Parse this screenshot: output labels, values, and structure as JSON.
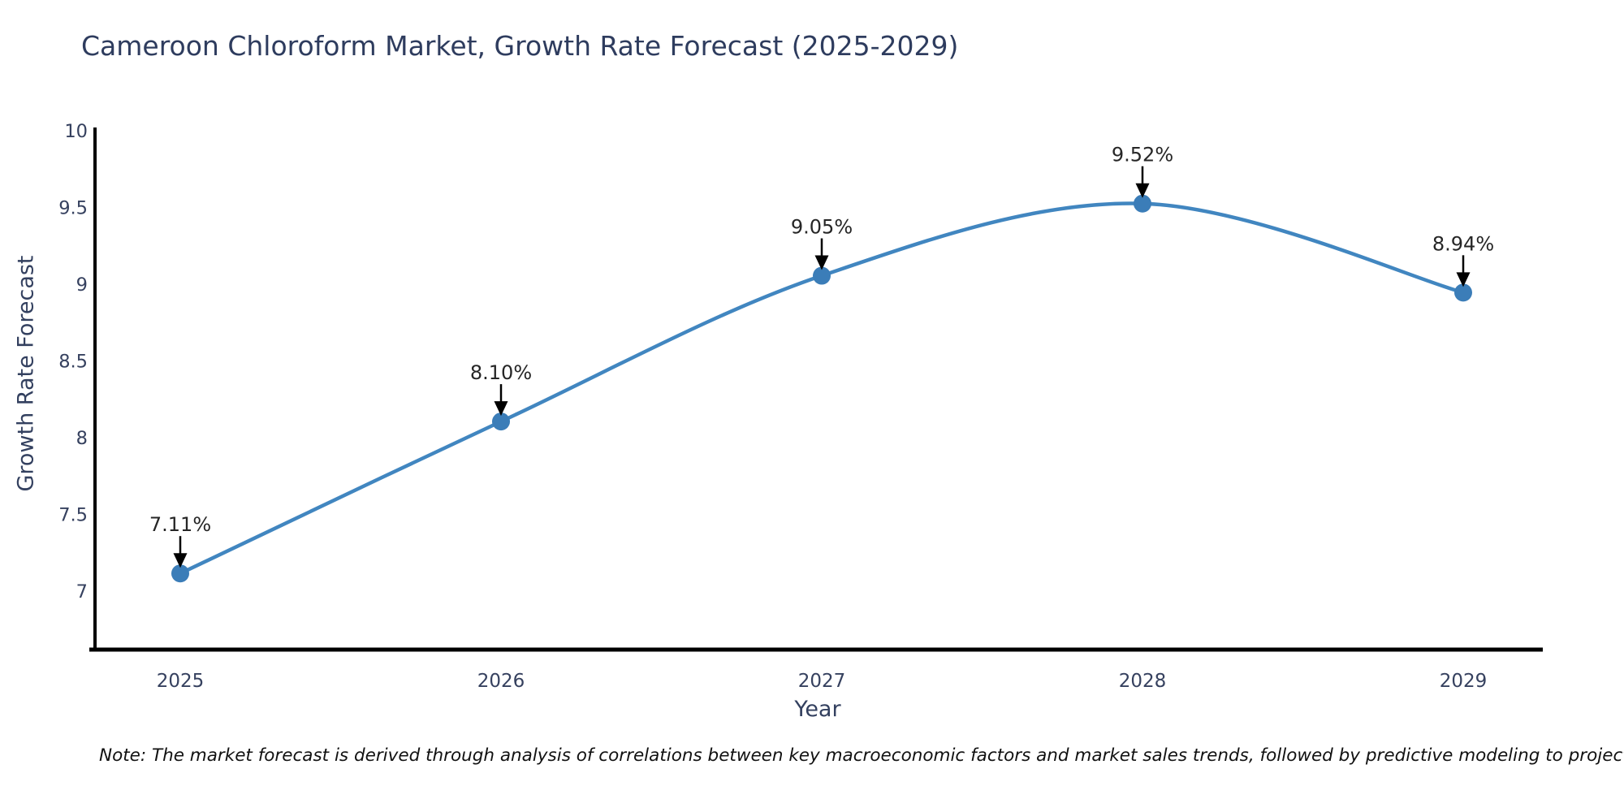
{
  "chart_data": {
    "type": "line",
    "title": "Cameroon Chloroform Market, Growth Rate Forecast (2025-2029)",
    "xlabel": "Year",
    "ylabel": "Growth Rate Forecast",
    "categories": [
      "2025",
      "2026",
      "2027",
      "2028",
      "2029"
    ],
    "series": [
      {
        "name": "Growth Rate Forecast",
        "values": [
          7.11,
          8.1,
          9.05,
          9.52,
          8.94
        ],
        "point_labels": [
          "7.11%",
          "8.10%",
          "9.05%",
          "9.52%",
          "8.94%"
        ]
      }
    ],
    "ytick_values": [
      7,
      7.5,
      8,
      8.5,
      9,
      9.5,
      10
    ],
    "ytick_labels": [
      "7",
      "7.5",
      "8",
      "8.5",
      "9",
      "9.5",
      "10"
    ],
    "ylim": [
      6.6,
      10
    ],
    "line_shape": "spline",
    "grid": false,
    "legend_position": "none",
    "footnote": "Note: The market forecast is derived through analysis of correlations between key macroeconomic factors and market sales trends, followed by predictive modeling to project future sales",
    "colors": {
      "line": "#4186c0",
      "marker": "#3b7db8",
      "annotation_arrow": "#000000",
      "annotation_text": "#262626",
      "axis_line": "#000000",
      "tick_text": "#36415f"
    }
  }
}
